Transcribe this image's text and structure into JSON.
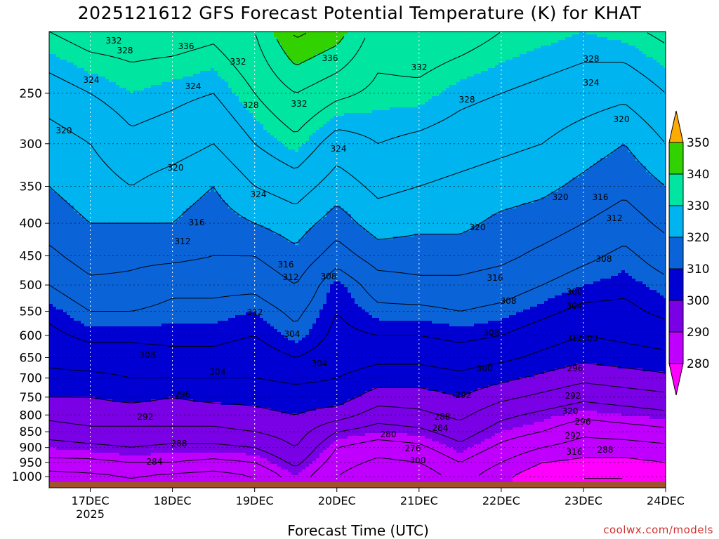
{
  "header": {
    "title": "2025121612 GFS Forecast Potential Temperature (K) for KHAT"
  },
  "footer": {
    "credit": "coolwx.com/models"
  },
  "chart_data": {
    "type": "heatmap",
    "title": "2025121612 GFS Forecast Potential Temperature (K) for KHAT",
    "xlabel": "Forecast Time (UTC)",
    "ylabel": "",
    "x_ticks": [
      "17DEC",
      "18DEC",
      "19DEC",
      "20DEC",
      "21DEC",
      "22DEC",
      "23DEC",
      "24DEC"
    ],
    "x_tick_year": "2025",
    "x_range": [
      16.5,
      24.0
    ],
    "y_ticks": [
      250,
      300,
      350,
      400,
      450,
      500,
      550,
      600,
      650,
      700,
      750,
      800,
      850,
      900,
      950,
      1000
    ],
    "y_range_hPa": [
      200,
      1020
    ],
    "y_scale": "log-pressure",
    "colorbar": {
      "levels": [
        280,
        290,
        300,
        310,
        320,
        330,
        340,
        350
      ],
      "colors": [
        "#ff00ff",
        "#c000ff",
        "#7a00e6",
        "#0000d2",
        "#0a64d8",
        "#00b4f0",
        "#00e6a0",
        "#32d200",
        "#8ce600",
        "#ffff00",
        "#ffaa00"
      ],
      "extend": "both"
    },
    "contour_interval_K": 4,
    "contour_labels": [
      "332",
      "328",
      "336",
      "332",
      "336",
      "332",
      "324",
      "324",
      "328",
      "332",
      "328",
      "324",
      "328",
      "324",
      "320",
      "320",
      "324",
      "320",
      "316",
      "312",
      "320",
      "316",
      "308",
      "320",
      "316",
      "312",
      "308",
      "316",
      "312",
      "308",
      "312",
      "308",
      "304",
      "308",
      "304",
      "304",
      "300",
      "300",
      "296",
      "296",
      "292",
      "292",
      "288",
      "288",
      "284",
      "284",
      "280",
      "276",
      "300",
      "296",
      "292",
      "288",
      "292",
      "320",
      "316",
      "312",
      "304",
      "300"
    ],
    "theta_profiles": {
      "pressure_hPa": [
        1000,
        950,
        900,
        850,
        800,
        750,
        700,
        650,
        600,
        550,
        500,
        450,
        400,
        350,
        300,
        250,
        200
      ],
      "series": [
        {
          "x": 16.5,
          "values": [
            282,
            287,
            290,
            294,
            297,
            300,
            303,
            305,
            307,
            309,
            312,
            315,
            318,
            320,
            322,
            326,
            332
          ]
        },
        {
          "x": 17.0,
          "values": [
            283,
            287,
            291,
            295,
            298,
            300,
            303,
            306,
            309,
            312,
            315,
            318,
            320,
            322,
            324,
            328,
            334
          ]
        },
        {
          "x": 17.5,
          "values": [
            284,
            288,
            292,
            295,
            298,
            301,
            304,
            306,
            309,
            312,
            315,
            317,
            320,
            324,
            327,
            330,
            334
          ]
        },
        {
          "x": 18.0,
          "values": [
            283,
            288,
            291,
            295,
            298,
            300,
            304,
            307,
            309,
            311,
            313,
            317,
            320,
            322,
            326,
            329,
            334
          ]
        },
        {
          "x": 18.5,
          "values": [
            282,
            287,
            291,
            295,
            298,
            301,
            304,
            307,
            309,
            311,
            313,
            316,
            318,
            320,
            324,
            328,
            333
          ]
        },
        {
          "x": 19.0,
          "values": [
            284,
            288,
            292,
            296,
            299,
            301,
            304,
            306,
            308,
            310,
            313,
            316,
            320,
            324,
            328,
            332,
            336
          ]
        },
        {
          "x": 19.5,
          "values": [
            290,
            293,
            296,
            298,
            300,
            302,
            305,
            308,
            311,
            313,
            316,
            319,
            322,
            326,
            331,
            336,
            345
          ]
        },
        {
          "x": 20.0,
          "values": [
            284,
            286,
            288,
            292,
            298,
            302,
            304,
            306,
            307,
            308,
            309,
            314,
            318,
            322,
            326,
            333,
            342
          ]
        },
        {
          "x": 20.5,
          "values": [
            280,
            283,
            286,
            290,
            294,
            298,
            302,
            305,
            308,
            311,
            314,
            318,
            322,
            325,
            328,
            331,
            334
          ]
        },
        {
          "x": 21.0,
          "values": [
            281,
            284,
            287,
            291,
            295,
            298,
            302,
            305,
            308,
            311,
            315,
            318,
            321,
            324,
            327,
            331,
            335
          ]
        },
        {
          "x": 21.5,
          "values": [
            286,
            288,
            291,
            294,
            297,
            300,
            303,
            306,
            309,
            312,
            315,
            318,
            321,
            323,
            326,
            329,
            334
          ]
        },
        {
          "x": 22.0,
          "values": [
            281,
            284,
            287,
            290,
            293,
            297,
            301,
            305,
            308,
            311,
            314,
            317,
            319,
            322,
            325,
            328,
            332
          ]
        },
        {
          "x": 22.5,
          "values": [
            277,
            280,
            284,
            288,
            291,
            295,
            299,
            303,
            306,
            309,
            312,
            315,
            318,
            321,
            324,
            327,
            331
          ]
        },
        {
          "x": 23.0,
          "values": [
            276,
            279,
            282,
            285,
            289,
            293,
            297,
            301,
            304,
            307,
            310,
            313,
            316,
            319,
            322,
            326,
            330
          ]
        },
        {
          "x": 23.5,
          "values": [
            276,
            279,
            282,
            286,
            290,
            294,
            298,
            302,
            305,
            307,
            309,
            311,
            314,
            317,
            320,
            325,
            331
          ]
        },
        {
          "x": 24.0,
          "values": [
            277,
            280,
            283,
            287,
            291,
            295,
            299,
            303,
            306,
            309,
            311,
            314,
            317,
            320,
            324,
            328,
            333
          ]
        }
      ]
    },
    "terrain_color": "#a0522d",
    "grid": true,
    "grid_style": "dotted"
  }
}
